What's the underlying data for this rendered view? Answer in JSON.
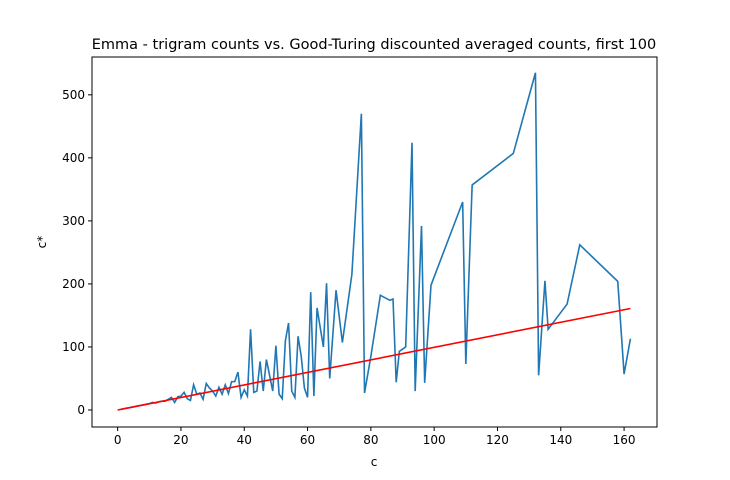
{
  "chart_data": {
    "type": "line",
    "title": "Emma - trigram counts vs. Good-Turing discounted averaged counts, first 100",
    "xlabel": "c",
    "ylabel": "c*",
    "xlim": [
      -8.1,
      170.4
    ],
    "ylim": [
      -27,
      560
    ],
    "xticks": [
      0,
      20,
      40,
      60,
      80,
      100,
      120,
      140,
      160
    ],
    "yticks": [
      0,
      100,
      200,
      300,
      400,
      500
    ],
    "series": [
      {
        "color": "#1f77b4",
        "x": [
          1,
          2,
          3,
          4,
          5,
          6,
          7,
          8,
          9,
          10,
          11,
          12,
          13,
          14,
          15,
          16,
          17,
          18,
          19,
          20,
          21,
          22,
          23,
          24,
          25,
          26,
          27,
          28,
          29,
          30,
          31,
          32,
          33,
          34,
          35,
          36,
          37,
          38,
          39,
          40,
          41,
          42,
          43,
          44,
          45,
          46,
          47,
          48,
          49,
          50,
          51,
          52,
          53,
          54,
          55,
          56,
          57,
          58,
          59,
          60,
          61,
          62,
          63,
          65,
          66,
          67,
          69,
          71,
          74,
          77,
          78,
          80,
          83,
          86,
          87,
          88,
          89,
          91,
          93,
          94,
          96,
          97,
          99,
          109,
          110,
          112,
          125,
          132,
          133,
          135,
          136,
          142,
          146,
          158,
          160,
          162
        ],
        "values": [
          1,
          2,
          3,
          4,
          5,
          6,
          7,
          8,
          9,
          10,
          12,
          11,
          13,
          14,
          14,
          17,
          20,
          12,
          21,
          22,
          28,
          18,
          15,
          40,
          25,
          27,
          17,
          42,
          35,
          30,
          22,
          36,
          25,
          40,
          26,
          45,
          45,
          60,
          20,
          32,
          22,
          128,
          28,
          30,
          77,
          30,
          80,
          55,
          30,
          102,
          25,
          18,
          110,
          138,
          30,
          20,
          117,
          85,
          35,
          20,
          187,
          22,
          162,
          100,
          201,
          50,
          190,
          107,
          215,
          470,
          27,
          85,
          182,
          174,
          176,
          44,
          93,
          100,
          424,
          30,
          292,
          43,
          198,
          330,
          73,
          357,
          407,
          535,
          55,
          205,
          128,
          168,
          262,
          204,
          57,
          113
        ]
      },
      {
        "color": "#ff0000",
        "x": [
          0,
          162
        ],
        "values": [
          0,
          161
        ]
      }
    ]
  }
}
